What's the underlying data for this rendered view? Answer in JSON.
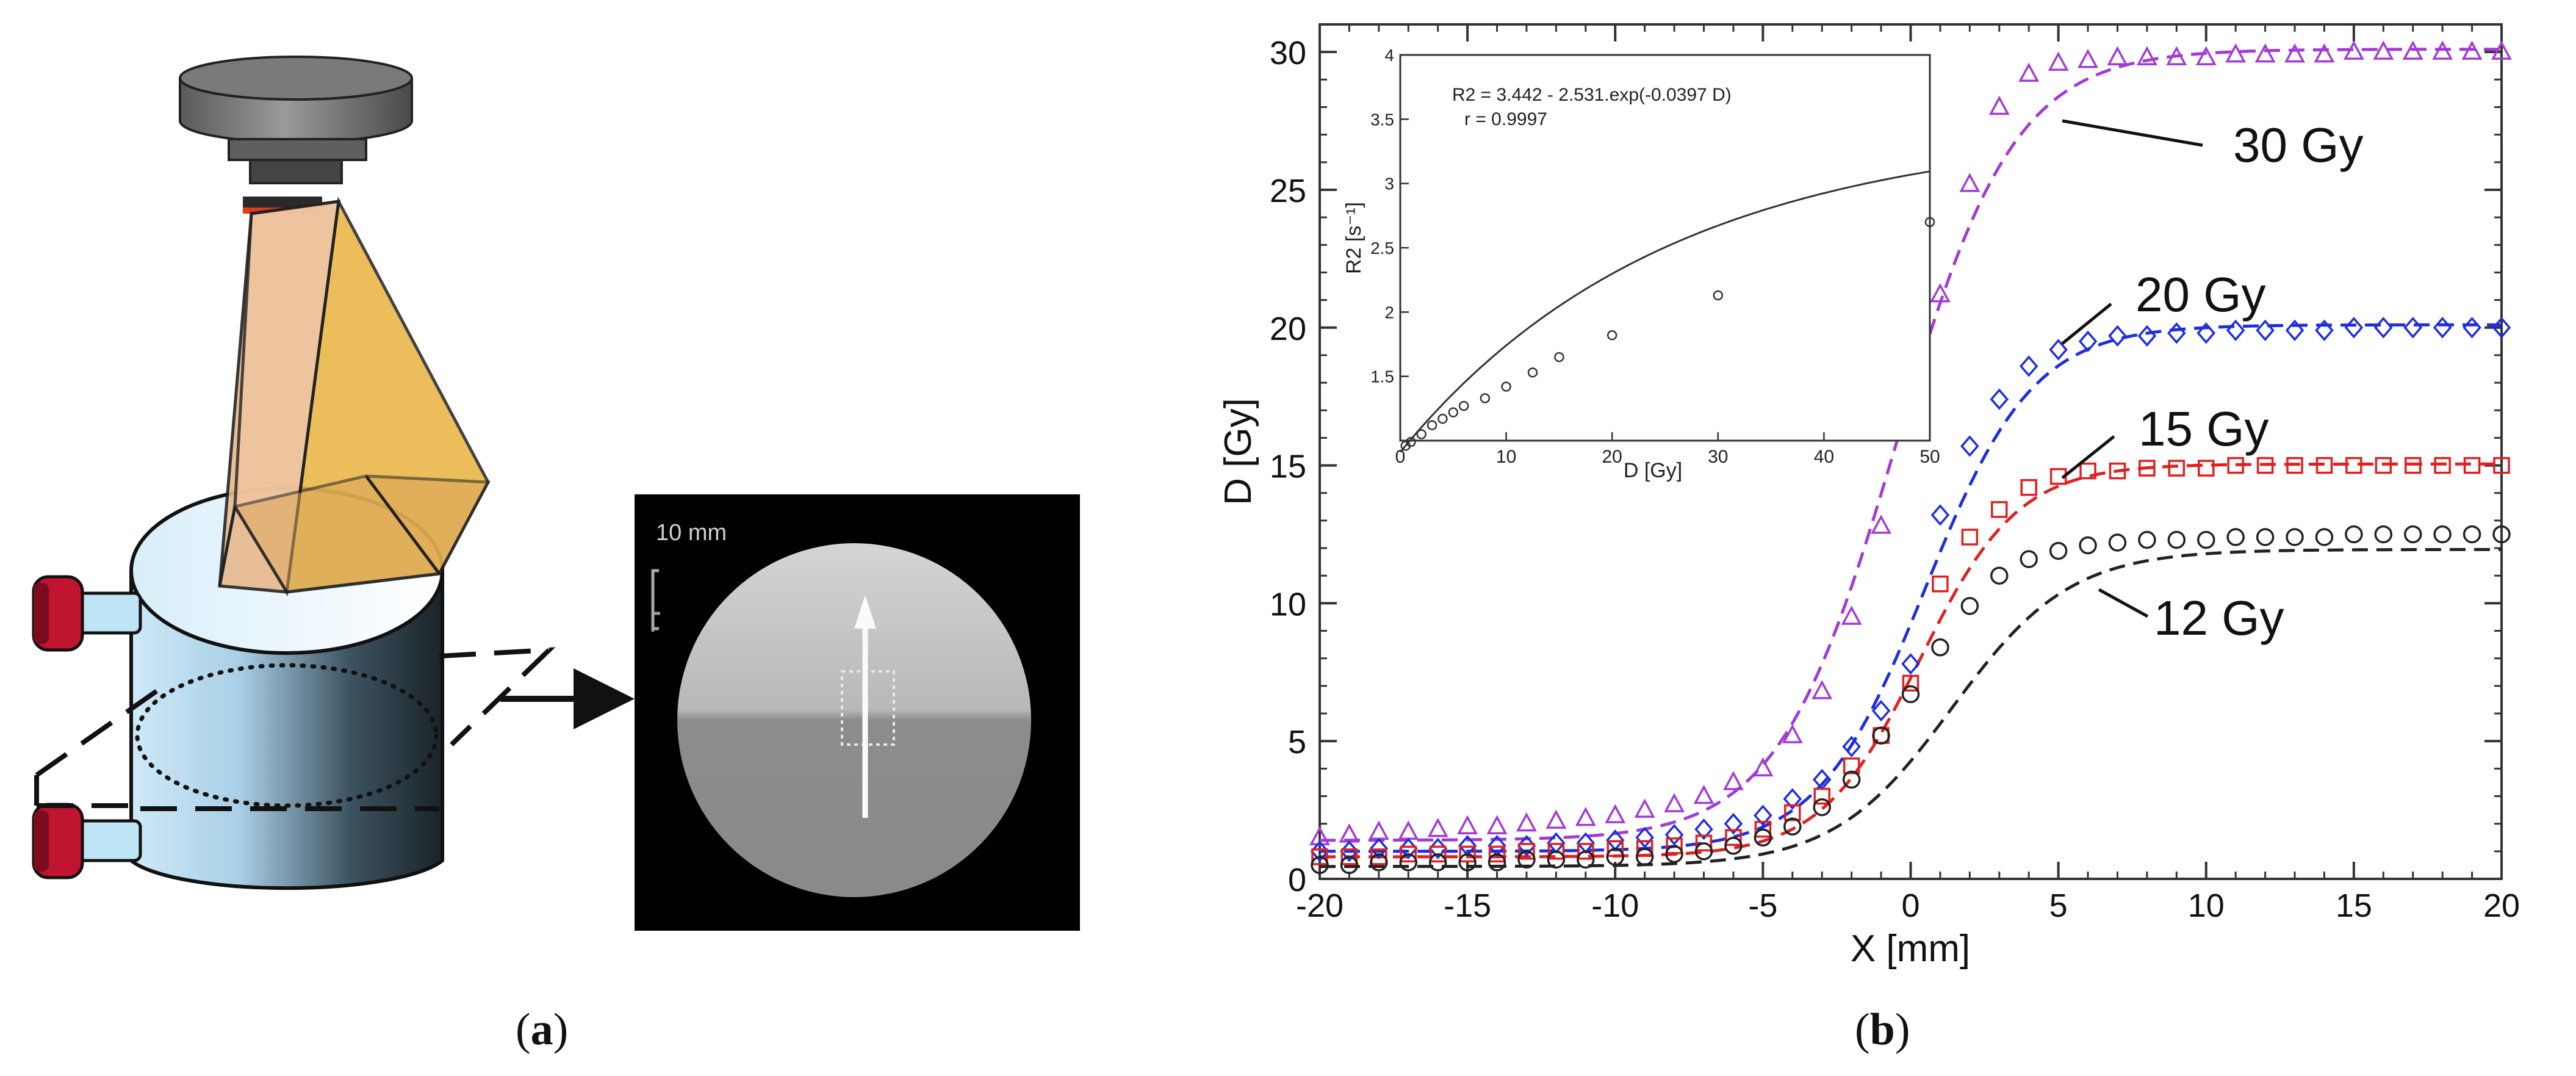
{
  "panel_a": {
    "caption_letter": "a",
    "mri_slice": {
      "scale_label": "10 mm"
    }
  },
  "panel_b": {
    "caption_letter": "b"
  },
  "chart_data": [
    {
      "type": "line",
      "xlabel": "X [mm]",
      "ylabel": "D [Gy]",
      "xlim": [
        -20,
        20
      ],
      "ylim": [
        0,
        31
      ],
      "xticks": [
        -20,
        -15,
        -10,
        -5,
        0,
        5,
        10,
        15,
        20
      ],
      "yticks": [
        0,
        5,
        10,
        15,
        20,
        25,
        30
      ],
      "grid": false,
      "legend": "none",
      "series": [
        {
          "name": "30 Gy",
          "color": "#a23bd6",
          "marker": "triangle",
          "curve": {
            "low": 1.4,
            "high": 30.1,
            "x0": -0.5,
            "k": 0.5
          },
          "points_x": [
            -20,
            -19,
            -18,
            -17,
            -16,
            -15,
            -14,
            -13,
            -12,
            -11,
            -10,
            -9,
            -8,
            -7,
            -6,
            -5,
            -4,
            -3,
            -2,
            -1,
            0,
            1,
            2,
            3,
            4,
            5,
            6,
            7,
            8,
            9,
            10,
            11,
            12,
            13,
            14,
            15,
            16,
            17,
            18,
            19,
            20
          ],
          "points_y": [
            1.5,
            1.6,
            1.7,
            1.7,
            1.8,
            1.9,
            1.9,
            2.0,
            2.1,
            2.2,
            2.3,
            2.5,
            2.7,
            3.0,
            3.5,
            4.0,
            5.2,
            6.8,
            9.5,
            12.8,
            16.8,
            21.2,
            25.2,
            28.0,
            29.2,
            29.6,
            29.7,
            29.8,
            29.8,
            29.8,
            29.8,
            29.9,
            29.9,
            29.9,
            29.9,
            30.0,
            30.0,
            30.0,
            30.0,
            30.0,
            30.0
          ]
        },
        {
          "name": "20 Gy",
          "color": "#1f2de0",
          "marker": "diamond",
          "curve": {
            "low": 1.0,
            "high": 20.1,
            "x0": 0.5,
            "k": 0.55
          },
          "points_x": [
            -20,
            -19,
            -18,
            -17,
            -16,
            -15,
            -14,
            -13,
            -12,
            -11,
            -10,
            -9,
            -8,
            -7,
            -6,
            -5,
            -4,
            -3,
            -2,
            -1,
            0,
            1,
            2,
            3,
            4,
            5,
            6,
            7,
            8,
            9,
            10,
            11,
            12,
            13,
            14,
            15,
            16,
            17,
            18,
            19,
            20
          ],
          "points_y": [
            1.0,
            1.0,
            1.1,
            1.1,
            1.1,
            1.2,
            1.2,
            1.2,
            1.3,
            1.3,
            1.4,
            1.5,
            1.6,
            1.8,
            2.0,
            2.3,
            2.9,
            3.6,
            4.8,
            6.1,
            7.8,
            13.2,
            15.7,
            17.4,
            18.6,
            19.2,
            19.5,
            19.7,
            19.7,
            19.8,
            19.8,
            19.9,
            19.9,
            19.9,
            19.9,
            20.0,
            20.0,
            20.0,
            20.0,
            20.0,
            20.0
          ]
        },
        {
          "name": "15 Gy",
          "color": "#e02020",
          "marker": "square",
          "curve": {
            "low": 0.8,
            "high": 15.05,
            "x0": 0.3,
            "k": 0.6
          },
          "points_x": [
            -20,
            -19,
            -18,
            -17,
            -16,
            -15,
            -14,
            -13,
            -12,
            -11,
            -10,
            -9,
            -8,
            -7,
            -6,
            -5,
            -4,
            -3,
            -2,
            -1,
            0,
            1,
            2,
            3,
            4,
            5,
            6,
            7,
            8,
            9,
            10,
            11,
            12,
            13,
            14,
            15,
            16,
            17,
            18,
            19,
            20
          ],
          "points_y": [
            0.8,
            0.8,
            0.8,
            0.9,
            0.9,
            0.9,
            0.9,
            1.0,
            1.0,
            1.0,
            1.1,
            1.1,
            1.2,
            1.3,
            1.5,
            1.8,
            2.4,
            3.0,
            4.1,
            5.2,
            7.1,
            10.7,
            12.4,
            13.4,
            14.2,
            14.6,
            14.8,
            14.8,
            14.9,
            14.9,
            14.9,
            15.0,
            15.0,
            15.0,
            15.0,
            15.0,
            15.0,
            15.0,
            15.0,
            15.0,
            15.0
          ]
        },
        {
          "name": "12 Gy",
          "color": "#222222",
          "marker": "circle",
          "curve": {
            "low": 0.45,
            "high": 11.95,
            "x0": 1.4,
            "k": 0.5
          },
          "points_x": [
            -20,
            -19,
            -18,
            -17,
            -16,
            -15,
            -14,
            -13,
            -12,
            -11,
            -10,
            -9,
            -8,
            -7,
            -6,
            -5,
            -4,
            -3,
            -2,
            -1,
            0,
            1,
            2,
            3,
            4,
            5,
            6,
            7,
            8,
            9,
            10,
            11,
            12,
            13,
            14,
            15,
            16,
            17,
            18,
            19,
            20
          ],
          "points_y": [
            0.5,
            0.5,
            0.6,
            0.6,
            0.6,
            0.6,
            0.6,
            0.7,
            0.7,
            0.7,
            0.8,
            0.8,
            0.9,
            1.0,
            1.2,
            1.5,
            1.9,
            2.6,
            3.6,
            5.2,
            6.7,
            8.4,
            9.9,
            11.0,
            11.6,
            11.9,
            12.1,
            12.2,
            12.3,
            12.3,
            12.3,
            12.4,
            12.4,
            12.4,
            12.4,
            12.5,
            12.5,
            12.5,
            12.5,
            12.5,
            12.5
          ]
        }
      ]
    },
    {
      "type": "scatter",
      "title": "R2 = 3.442 - 2.531.exp(-0.0397 D)",
      "subtitle": "r = 0.9997",
      "xlabel": "D [Gy]",
      "ylabel": "R2 [s⁻¹]",
      "xlim": [
        0,
        50
      ],
      "ylim": [
        1,
        4
      ],
      "xticks": [
        0,
        10,
        20,
        30,
        40,
        50
      ],
      "yticks": [
        1.5,
        2,
        2.5,
        3,
        3.5,
        4
      ],
      "fit": {
        "a": 3.442,
        "b": 2.531,
        "c": 0.0397
      },
      "x": [
        0.5,
        1,
        2,
        3,
        4,
        5,
        6,
        8,
        10,
        12.5,
        15,
        20,
        30,
        50
      ],
      "y": [
        0.96,
        0.99,
        1.05,
        1.12,
        1.17,
        1.22,
        1.27,
        1.33,
        1.42,
        1.53,
        1.65,
        1.82,
        2.13,
        2.7
      ]
    }
  ]
}
